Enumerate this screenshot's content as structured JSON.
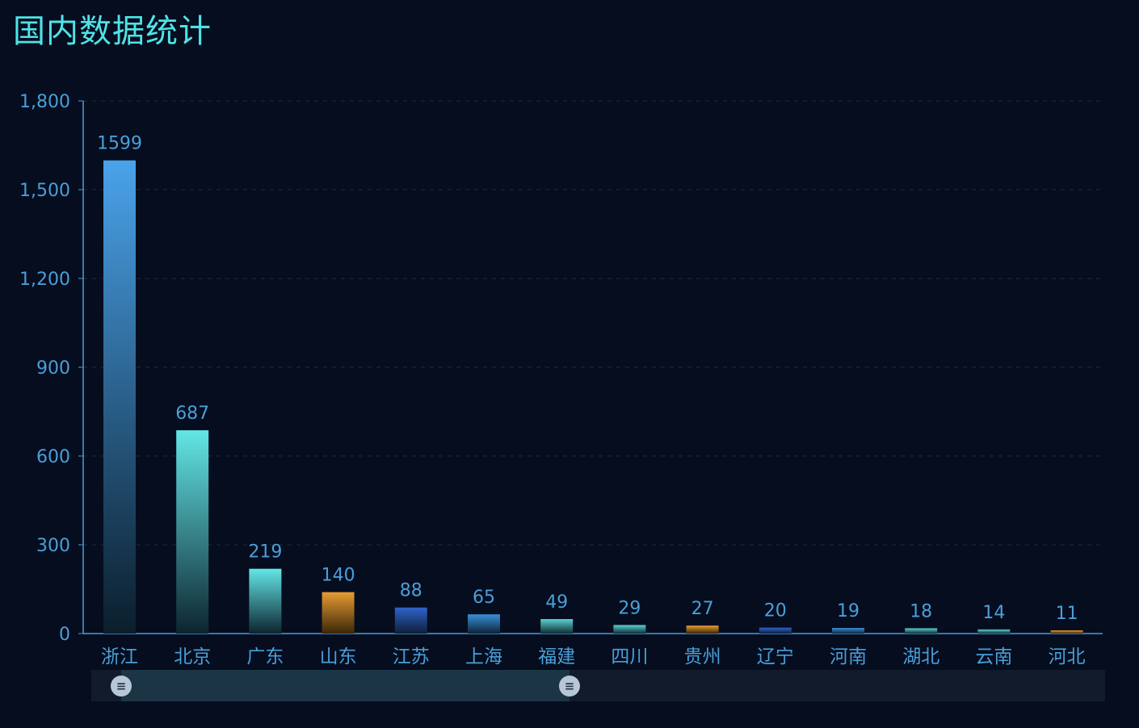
{
  "title": "国内数据统计",
  "chart_data": {
    "type": "bar",
    "categories": [
      "浙江",
      "北京",
      "广东",
      "山东",
      "江苏",
      "上海",
      "福建",
      "四川",
      "贵州",
      "辽宁",
      "河南",
      "湖北",
      "云南",
      "河北"
    ],
    "values": [
      1599,
      687,
      219,
      140,
      88,
      65,
      49,
      29,
      27,
      20,
      19,
      18,
      14,
      11
    ],
    "ylim": [
      0,
      1800
    ],
    "yticks": [
      "0",
      "300",
      "600",
      "900",
      "1,200",
      "1,500",
      "1,800"
    ],
    "grid": true,
    "bar_colors": [
      [
        "#4aa3ea",
        "#0b1e2c"
      ],
      [
        "#63e6e6",
        "#0d2430"
      ],
      [
        "#63e6e6",
        "#0d2430"
      ],
      [
        "#e79b33",
        "#3a2708"
      ],
      [
        "#2f63c8",
        "#0d1e3a"
      ],
      [
        "#3a8fd8",
        "#0d2438"
      ],
      [
        "#58d2d2",
        "#0f2c34"
      ],
      [
        "#58d2d2",
        "#0f2c34"
      ],
      [
        "#e79b33",
        "#3a2708"
      ],
      [
        "#2f63c8",
        "#0d1e3a"
      ],
      [
        "#3a8fd8",
        "#0d2438"
      ],
      [
        "#58d2d2",
        "#0f2c34"
      ],
      [
        "#58d2d2",
        "#0f2c34"
      ],
      [
        "#e79b33",
        "#3a2708"
      ]
    ]
  },
  "zoom": {
    "start_fraction": 0.03,
    "end_fraction": 0.47,
    "handle_glyph": "≡"
  }
}
